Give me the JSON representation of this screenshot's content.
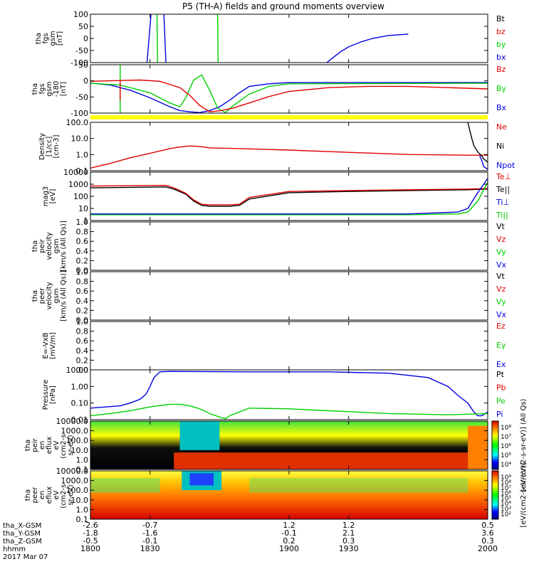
{
  "title": "P5 (TH-A) fields and ground moments overview",
  "colors": {
    "black": "#000000",
    "red": "#e00000",
    "green": "#00d000",
    "blue": "#0000e0",
    "yellow": "#ffff00"
  },
  "chart_data": [
    {
      "id": "fgs1",
      "type": "line",
      "ylabel_lines": [
        "tha",
        "fgs",
        "gsm",
        "[nT]"
      ],
      "yticks": [
        "100",
        "50",
        "0",
        "-50",
        "-100"
      ],
      "ylim": [
        -100,
        100
      ],
      "legend": [
        {
          "name": "Bt",
          "color": "#000000"
        },
        {
          "name": "bz",
          "color": "#e00000"
        },
        {
          "name": "by",
          "color": "#00d000"
        },
        {
          "name": "bx",
          "color": "#0000e0"
        }
      ],
      "series": [
        {
          "name": "bx",
          "color": "#0000e0",
          "x": [
            1919,
            1922,
            1926,
            1930,
            1936,
            1942,
            1950,
            1960
          ],
          "y": [
            -100,
            -80,
            -55,
            -35,
            -15,
            0,
            12,
            18
          ]
        },
        {
          "name": "bx",
          "color": "#0000e0",
          "x": [
            1828.5,
            1829.5,
            1830.5
          ],
          "y": [
            -100,
            0,
            100
          ]
        },
        {
          "name": "bx",
          "color": "#0000e0",
          "x": [
            1837,
            1837.5,
            1838
          ],
          "y": [
            100,
            0,
            -100
          ]
        },
        {
          "name": "by",
          "color": "#00d000",
          "x": [
            1833.5,
            1833.8
          ],
          "y": [
            100,
            -100
          ]
        },
        {
          "name": "by",
          "color": "#00d000",
          "x": [
            1864,
            1864.3
          ],
          "y": [
            100,
            -100
          ]
        }
      ]
    },
    {
      "id": "fgs2",
      "type": "line",
      "ylabel_lines": [
        "tha",
        "fgs",
        "gsm",
        "-180",
        "[nT]"
      ],
      "yticks": [
        "50",
        "0",
        "-50",
        "-100"
      ],
      "ylim": [
        -120,
        70
      ],
      "legend": [
        {
          "name": "Bz",
          "color": "#e00000"
        },
        {
          "name": "By",
          "color": "#00d000"
        },
        {
          "name": "Bx",
          "color": "#0000e0"
        }
      ],
      "series": [
        {
          "name": "Bx",
          "color": "#0000e0",
          "x": [
            1800,
            1810,
            1820,
            1830,
            1840,
            1845,
            1850,
            1855,
            1860,
            1865,
            1870,
            1875,
            1880,
            1890,
            1900,
            2000
          ],
          "y": [
            -2,
            -10,
            -30,
            -60,
            -95,
            -110,
            -115,
            -118,
            -110,
            -95,
            -70,
            -40,
            -15,
            -5,
            0,
            0
          ]
        },
        {
          "name": "By",
          "color": "#00d000",
          "x": [
            1800,
            1815,
            1830,
            1840,
            1845,
            1848,
            1852,
            1856,
            1860,
            1864,
            1868,
            1872,
            1880,
            1890,
            1900,
            2000
          ],
          "y": [
            -3,
            -10,
            -40,
            -80,
            -95,
            -60,
            10,
            30,
            -30,
            -100,
            -118,
            -90,
            -45,
            -15,
            -5,
            -3
          ]
        },
        {
          "name": "Bz",
          "color": "#e00000",
          "x": [
            1800,
            1815,
            1825,
            1835,
            1845,
            1850,
            1855,
            1860,
            1866,
            1872,
            1880,
            1890,
            1900,
            1920,
            1940,
            1960,
            1980,
            2000
          ],
          "y": [
            5,
            8,
            10,
            5,
            -20,
            -50,
            -90,
            -115,
            -110,
            -100,
            -80,
            -55,
            -35,
            -20,
            -15,
            -15,
            -20,
            -25
          ]
        },
        {
          "name": "spike",
          "color": "#00d000",
          "x": [
            1815,
            1815
          ],
          "y": [
            70,
            -120
          ]
        },
        {
          "name": "spike",
          "color": "#e00000",
          "x": [
            1815,
            1815
          ],
          "y": [
            10,
            -70
          ]
        }
      ]
    },
    {
      "id": "density",
      "type": "line",
      "ylabel_lines": [
        "Density",
        "[1/cc]",
        "[cm-3]"
      ],
      "yticks": [
        "100.0",
        "10.0",
        "1.0",
        "0.1"
      ],
      "ylim": [
        0.08,
        150
      ],
      "log": true,
      "legend": [
        {
          "name": "Ne",
          "color": "#e00000"
        },
        {
          "name": "Ni",
          "color": "#000000"
        },
        {
          "name": "Npot",
          "color": "#0000e0"
        }
      ],
      "series": [
        {
          "name": "Ne",
          "color": "#e00000",
          "x": [
            1800,
            1810,
            1820,
            1830,
            1840,
            1845,
            1850,
            1855,
            1860,
            1870,
            1880,
            1900,
            1930,
            1960,
            1990,
            2000
          ],
          "y": [
            0.12,
            0.25,
            0.6,
            1.2,
            2.5,
            3.2,
            3.8,
            3.5,
            2.8,
            2.6,
            2.4,
            2.0,
            1.4,
            1.0,
            0.9,
            0.9
          ]
        },
        {
          "name": "Ni",
          "color": "#000000",
          "x": [
            1990,
            1991,
            1992,
            1993,
            1995,
            1997,
            1998,
            2000
          ],
          "y": [
            150,
            40,
            12,
            4,
            1.5,
            0.8,
            0.5,
            0.3
          ]
        },
        {
          "name": "Npot",
          "color": "#0000e0",
          "x": [
            1996,
            1997,
            1998,
            2000
          ],
          "y": [
            0.8,
            0.4,
            0.15,
            0.1
          ]
        }
      ]
    },
    {
      "id": "temperature",
      "type": "line",
      "ylabel_lines": [
        "mag3",
        "[eV]"
      ],
      "yticks": [
        "10000",
        "1000",
        "100",
        "10",
        "1"
      ],
      "ylim": [
        1,
        10000
      ],
      "log": true,
      "legend": [
        {
          "name": "Te⊥",
          "color": "#e00000"
        },
        {
          "name": "Te||",
          "color": "#000000"
        },
        {
          "name": "Ti⊥",
          "color": "#0000e0"
        },
        {
          "name": "Ti||",
          "color": "#00d000"
        }
      ],
      "series": [
        {
          "name": "Te||",
          "color": "#000000",
          "x": [
            1800,
            1820,
            1838,
            1842,
            1848,
            1852,
            1856,
            1860,
            1865,
            1870,
            1875,
            1880,
            1900,
            1930,
            1960,
            1990,
            2000
          ],
          "y": [
            500,
            550,
            600,
            400,
            150,
            40,
            18,
            15,
            15,
            15,
            18,
            60,
            200,
            250,
            300,
            350,
            400
          ]
        },
        {
          "name": "Te⊥",
          "color": "#e00000",
          "x": [
            1800,
            1820,
            1838,
            1842,
            1848,
            1852,
            1856,
            1860,
            1865,
            1870,
            1875,
            1880,
            1900,
            1930,
            1960,
            1990,
            2000
          ],
          "y": [
            700,
            750,
            800,
            500,
            180,
            50,
            22,
            20,
            20,
            20,
            22,
            80,
            250,
            300,
            350,
            400,
            450
          ]
        },
        {
          "name": "Ti||",
          "color": "#00d000",
          "x": [
            1800,
            1850,
            1900,
            1960,
            1985,
            1990,
            1995,
            2000
          ],
          "y": [
            3,
            3,
            3,
            3,
            3.5,
            5,
            40,
            1500
          ]
        },
        {
          "name": "Ti⊥",
          "color": "#0000e0",
          "x": [
            1800,
            1850,
            1900,
            1960,
            1985,
            1990,
            1995,
            2000
          ],
          "y": [
            3.5,
            3.5,
            3.5,
            3.5,
            5,
            10,
            200,
            3000
          ]
        }
      ]
    },
    {
      "id": "peirvel",
      "type": "line",
      "ylabel_lines": [
        "tha",
        "peir",
        "velocity",
        "gsm",
        "[km/s (All Qs)]"
      ],
      "yticks": [
        "1.0",
        "0.8",
        "0.6",
        "0.4",
        "0.2",
        "0.0"
      ],
      "ylim": [
        0,
        1
      ],
      "legend": [
        {
          "name": "Vt",
          "color": "#000000"
        },
        {
          "name": "Vz",
          "color": "#e00000"
        },
        {
          "name": "Vy",
          "color": "#00d000"
        },
        {
          "name": "Vx",
          "color": "#0000e0"
        }
      ],
      "series": []
    },
    {
      "id": "peervel",
      "type": "line",
      "ylabel_lines": [
        "tha",
        "peer",
        "velocity",
        "gsm",
        "[km/s (All Qs)]"
      ],
      "yticks": [
        "1.0",
        "0.8",
        "0.6",
        "0.4",
        "0.2",
        "0.0"
      ],
      "ylim": [
        0,
        1
      ],
      "legend": [
        {
          "name": "Vt",
          "color": "#000000"
        },
        {
          "name": "Vz",
          "color": "#e00000"
        },
        {
          "name": "Vy",
          "color": "#00d000"
        },
        {
          "name": "Vx",
          "color": "#0000e0"
        }
      ],
      "series": []
    },
    {
      "id": "efield",
      "type": "line",
      "ylabel_lines": [
        "E=-VxB",
        "[mV/m]"
      ],
      "yticks": [
        "1.0",
        "0.8",
        "0.6",
        "0.4",
        "0.2",
        "0.0"
      ],
      "ylim": [
        0,
        1
      ],
      "legend": [
        {
          "name": "Ez",
          "color": "#e00000"
        },
        {
          "name": "Ey",
          "color": "#00d000"
        },
        {
          "name": "Ex",
          "color": "#0000e0"
        }
      ],
      "series": []
    },
    {
      "id": "pressure",
      "type": "line",
      "ylabel_lines": [
        "Pressure",
        "[nPa]"
      ],
      "yticks": [
        "10.00",
        "1.00",
        "0.10",
        "0.01"
      ],
      "ylim": [
        0.005,
        40
      ],
      "log": true,
      "legend": [
        {
          "name": "Pt",
          "color": "#000000"
        },
        {
          "name": "Pb",
          "color": "#e00000"
        },
        {
          "name": "Pe",
          "color": "#00d000"
        },
        {
          "name": "Pi",
          "color": "#0000e0"
        }
      ],
      "series": [
        {
          "name": "Pi",
          "color": "#0000e0",
          "x": [
            1800,
            1815,
            1820,
            1825,
            1828,
            1830,
            1832,
            1835,
            1840,
            1880,
            1920,
            1950,
            1970,
            1980,
            1985,
            1990,
            1993,
            1995,
            1997,
            2000
          ],
          "y": [
            0.04,
            0.06,
            0.1,
            0.2,
            0.5,
            2,
            10,
            28,
            30,
            28,
            28,
            22,
            10,
            2,
            0.4,
            0.1,
            0.02,
            0.01,
            0.01,
            0.02
          ]
        },
        {
          "name": "Pe",
          "color": "#00d000",
          "x": [
            1800,
            1810,
            1820,
            1830,
            1840,
            1845,
            1850,
            1855,
            1860,
            1865,
            1868,
            1870,
            1880,
            1900,
            1920,
            1950,
            1980,
            2000
          ],
          "y": [
            0.01,
            0.015,
            0.025,
            0.05,
            0.08,
            0.08,
            0.06,
            0.035,
            0.015,
            0.008,
            0.006,
            0.01,
            0.04,
            0.035,
            0.025,
            0.015,
            0.012,
            0.015
          ]
        }
      ]
    },
    {
      "id": "peir_spec",
      "type": "heatmap",
      "ylabel_lines": [
        "tha",
        "peir",
        "en",
        "eflux",
        "eV",
        "(cm2-s-",
        "sr-eV)"
      ],
      "yticks": [
        "10000.0",
        "1000.0",
        "100.0",
        "10.0",
        "1.0",
        "0.1"
      ],
      "colorbar_label": "[eV/(cm2-s-sr-eV)] (All Qs)",
      "colorbar_ticks": [
        "10⁸",
        "10⁷",
        "10⁶",
        "10⁵",
        "10⁴"
      ]
    },
    {
      "id": "peer_spec",
      "type": "heatmap",
      "ylabel_lines": [
        "tha",
        "peer",
        "en",
        "eflux",
        "eV",
        "(cm2-s-",
        "sr-eV)"
      ],
      "yticks": [
        "10000.0",
        "1000.0",
        "100.0",
        "10.0",
        "1.0",
        "0.1"
      ],
      "colorbar_label": "[eV/(cm2-s-sr-eV)]",
      "colorbar_ticks": [
        "10⁹",
        "10⁸",
        "10⁷",
        "10⁶",
        "10⁵",
        "10⁴",
        "10³",
        "10²"
      ]
    }
  ],
  "footer": {
    "row_labels": [
      "tha_X-GSM",
      "tha_Y-GSM",
      "tha_Z-GSM",
      "hhmm",
      "2017 Mar 07"
    ],
    "columns": [
      {
        "x": 1800,
        "vals": [
          "-2.6",
          "-1.8",
          "-0.5",
          "1800"
        ]
      },
      {
        "x": 1830,
        "vals": [
          "-0.7",
          "-1.6",
          "-0.1",
          "1830"
        ]
      },
      {
        "x": 1900,
        "vals": [
          "1.2",
          "-0.1",
          "0.2",
          "1900"
        ]
      },
      {
        "x": 1930,
        "vals": [
          "1.2",
          "2.1",
          "0.3",
          "1930"
        ]
      },
      {
        "x": 2000,
        "vals": [
          "0.5",
          "3.6",
          "0.3",
          "2000"
        ]
      }
    ]
  }
}
